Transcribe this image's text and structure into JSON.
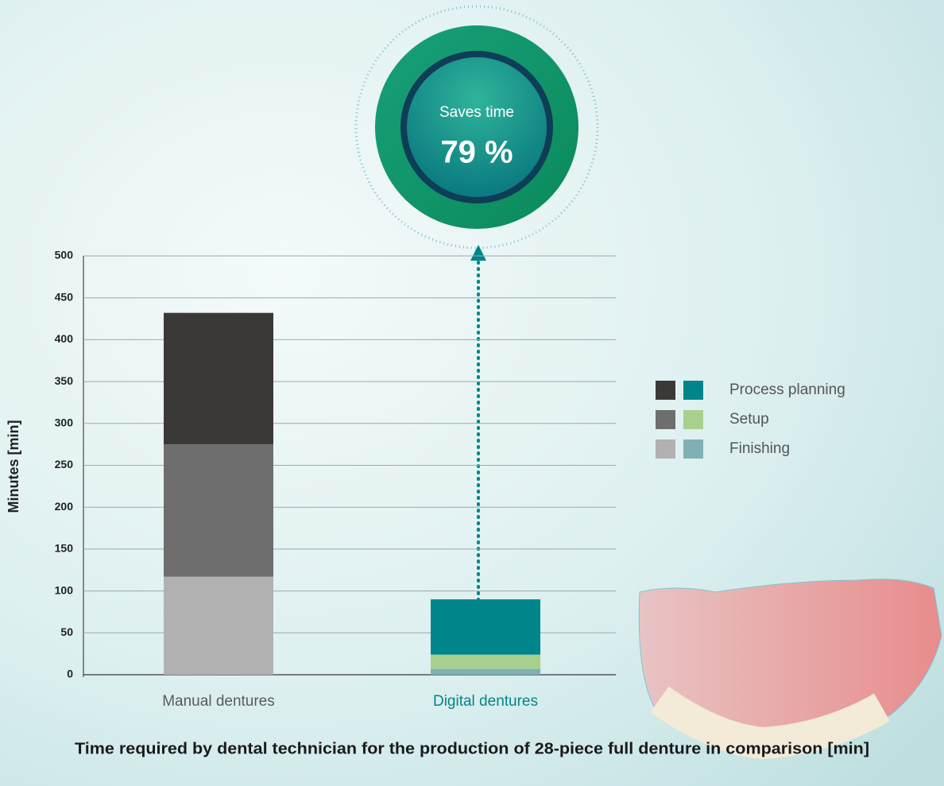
{
  "chart_data": {
    "type": "stacked-bar",
    "title": "Time required by dental technician for the production of 28-piece full denture in comparison [min]",
    "y_label": "Minutes [min]",
    "categories": [
      "Manual dentures",
      "Digital dentures"
    ],
    "category_colors": [
      "#5a5a5a",
      "#00858a"
    ],
    "series": [
      {
        "name": "Process planning",
        "colors": [
          "#3b3938",
          "#00858a"
        ],
        "values": [
          157,
          66
        ]
      },
      {
        "name": "Setup",
        "colors": [
          "#6e6e6e",
          "#a8d08d"
        ],
        "values": [
          158,
          17
        ]
      },
      {
        "name": "Finishing",
        "colors": [
          "#b1b1b1",
          "#7fb0b4"
        ],
        "values": [
          117,
          7
        ]
      }
    ],
    "ylim": [
      0,
      500
    ],
    "yticks": [
      0,
      50,
      100,
      150,
      200,
      250,
      300,
      350,
      400,
      450,
      500
    ],
    "grid": true,
    "badge": {
      "label": "Saves time",
      "value_label": "79 %"
    }
  }
}
